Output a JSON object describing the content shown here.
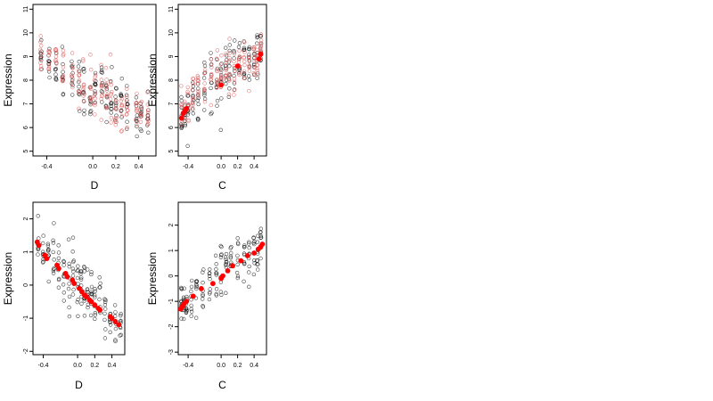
{
  "chart_data": [
    {
      "type": "scatter",
      "xlabel": "D",
      "ylabel": "Expression",
      "xlim": [
        -0.52,
        0.55
      ],
      "ylim": [
        4.8,
        11.2
      ],
      "xticks": [
        -0.4,
        0.0,
        0.2,
        0.4
      ],
      "yticks": [
        5,
        6,
        7,
        8,
        9,
        10,
        11
      ],
      "xtick_labels": [
        "-0.4",
        "0.0",
        "0.2",
        "0.4"
      ],
      "ytick_labels": [
        "5",
        "6",
        "7",
        "8",
        "9",
        "10",
        "11"
      ],
      "grid": false,
      "series": [
        {
          "color": "#000000",
          "marker": "open-circle",
          "x": [
            -0.45,
            -0.38,
            -0.32,
            -0.26,
            -0.18,
            -0.12,
            -0.08,
            -0.02,
            0.02,
            0.08,
            0.12,
            0.16,
            0.2,
            0.25,
            0.3,
            0.38,
            0.42,
            0.48
          ],
          "y": [
            9.0,
            8.9,
            8.6,
            8.3,
            8.2,
            7.9,
            7.6,
            7.3,
            7.4,
            7.7,
            7.3,
            7.1,
            7.0,
            6.9,
            6.8,
            6.7,
            6.6,
            6.4
          ],
          "spread": [
            0.9,
            0.9,
            0.9,
            1.0,
            1.1,
            1.1,
            1.1,
            1.0,
            1.1,
            1.2,
            1.1,
            1.0,
            1.0,
            0.9,
            0.9,
            0.8,
            0.8,
            0.8
          ]
        },
        {
          "color": "#e06060",
          "marker": "open-circle",
          "x": [
            -0.45,
            -0.38,
            -0.32,
            -0.26,
            -0.18,
            -0.12,
            -0.08,
            -0.02,
            0.02,
            0.08,
            0.12,
            0.16,
            0.2,
            0.25,
            0.3,
            0.38,
            0.42,
            0.48
          ],
          "y": [
            9.2,
            9.0,
            8.8,
            8.5,
            8.3,
            8.0,
            7.8,
            7.6,
            7.5,
            7.6,
            7.4,
            7.2,
            7.0,
            6.9,
            6.9,
            6.8,
            6.8,
            6.7
          ],
          "spread": [
            0.8,
            0.8,
            0.8,
            0.9,
            1.0,
            1.0,
            1.0,
            0.9,
            1.0,
            1.1,
            1.0,
            0.9,
            0.9,
            0.8,
            0.8,
            0.7,
            0.7,
            0.7
          ]
        }
      ]
    },
    {
      "type": "scatter",
      "xlabel": "C",
      "ylabel": "Expression",
      "xlim": [
        -0.52,
        0.55
      ],
      "ylim": [
        4.8,
        11.2
      ],
      "xticks": [
        -0.4,
        0.0,
        0.2,
        0.4
      ],
      "yticks": [
        5,
        6,
        7,
        8,
        9,
        10,
        11
      ],
      "xtick_labels": [
        "-0.4",
        "0.0",
        "0.2",
        "0.4"
      ],
      "ytick_labels": [
        "5",
        "6",
        "7",
        "8",
        "9",
        "10",
        "11"
      ],
      "grid": false,
      "series": [
        {
          "color": "#000000",
          "marker": "open-circle",
          "x": [
            -0.48,
            -0.44,
            -0.4,
            -0.34,
            -0.28,
            -0.2,
            -0.12,
            -0.05,
            0.0,
            0.06,
            0.1,
            0.16,
            0.22,
            0.28,
            0.34,
            0.4,
            0.44,
            0.48
          ],
          "y": [
            6.4,
            6.7,
            6.9,
            7.2,
            7.4,
            7.8,
            7.9,
            8.0,
            8.1,
            8.3,
            8.4,
            8.6,
            8.6,
            8.7,
            8.8,
            8.9,
            9.1,
            9.3
          ],
          "spread": [
            0.8,
            0.8,
            0.9,
            1.0,
            1.0,
            1.1,
            1.1,
            1.1,
            1.2,
            1.1,
            1.1,
            1.0,
            1.0,
            1.0,
            0.9,
            0.9,
            0.9,
            0.9
          ]
        },
        {
          "color": "#e06060",
          "marker": "open-circle",
          "x": [
            -0.48,
            -0.44,
            -0.4,
            -0.34,
            -0.28,
            -0.2,
            -0.12,
            -0.05,
            0.0,
            0.06,
            0.1,
            0.16,
            0.22,
            0.28,
            0.34,
            0.4,
            0.44,
            0.48
          ],
          "y": [
            6.5,
            6.7,
            7.0,
            7.3,
            7.6,
            7.9,
            8.0,
            8.1,
            8.2,
            8.3,
            8.4,
            8.5,
            8.6,
            8.7,
            8.8,
            8.9,
            9.0,
            9.1
          ],
          "spread": [
            0.7,
            0.7,
            0.8,
            0.9,
            0.9,
            1.0,
            1.0,
            1.0,
            1.0,
            1.0,
            1.0,
            0.9,
            0.9,
            0.9,
            0.8,
            0.8,
            0.8,
            0.8
          ]
        },
        {
          "color": "#ff0000",
          "marker": "filled-circle",
          "x": [
            -0.48,
            -0.46,
            -0.44,
            -0.42,
            0.0,
            0.2,
            0.46,
            0.48
          ],
          "y": [
            6.4,
            6.6,
            6.7,
            6.8,
            7.8,
            8.6,
            8.9,
            9.1
          ],
          "spread": [
            0,
            0,
            0,
            0,
            0,
            0,
            0,
            0
          ]
        }
      ]
    },
    {
      "type": "scatter",
      "xlabel": "D",
      "ylabel": "Expression",
      "xlim": [
        -0.52,
        0.55
      ],
      "ylim": [
        -2.1,
        2.5
      ],
      "xticks": [
        -0.4,
        0.0,
        0.2,
        0.4
      ],
      "yticks": [
        -2,
        -1,
        0,
        1,
        2
      ],
      "xtick_labels": [
        "-0.4",
        "0.0",
        "0.2",
        "0.4"
      ],
      "ytick_labels": [
        "-2",
        "-1",
        "0",
        "1",
        "2"
      ],
      "grid": false,
      "series": [
        {
          "color": "#000000",
          "marker": "open-circle",
          "x": [
            -0.46,
            -0.4,
            -0.34,
            -0.28,
            -0.22,
            -0.16,
            -0.1,
            -0.05,
            0.0,
            0.04,
            0.08,
            0.12,
            0.16,
            0.2,
            0.26,
            0.32,
            0.38,
            0.44,
            0.5
          ],
          "y": [
            1.3,
            1.1,
            0.9,
            0.7,
            0.5,
            0.3,
            0.2,
            0.1,
            -0.1,
            -0.2,
            -0.3,
            -0.4,
            -0.5,
            -0.6,
            -0.7,
            -0.8,
            -0.9,
            -1.1,
            -1.2
          ],
          "spread": [
            0.6,
            0.7,
            0.7,
            0.8,
            0.8,
            0.9,
            0.9,
            0.9,
            0.9,
            0.9,
            0.9,
            0.8,
            0.8,
            0.8,
            0.7,
            0.7,
            0.7,
            0.6,
            0.6
          ]
        },
        {
          "color": "#ff0000",
          "marker": "filled-circle",
          "x": [
            -0.47,
            -0.45,
            -0.38,
            -0.36,
            -0.24,
            -0.22,
            -0.14,
            -0.12,
            -0.06,
            -0.04,
            0.02,
            0.05,
            0.08,
            0.1,
            0.14,
            0.16,
            0.2,
            0.24,
            0.26,
            0.38,
            0.4,
            0.44,
            0.48
          ],
          "y": [
            1.3,
            1.2,
            0.9,
            0.8,
            0.6,
            0.5,
            0.35,
            0.25,
            0.15,
            0.05,
            -0.1,
            -0.2,
            -0.3,
            -0.35,
            -0.45,
            -0.5,
            -0.6,
            -0.7,
            -0.75,
            -0.95,
            -1.0,
            -1.1,
            -1.2
          ],
          "spread": [
            0,
            0,
            0,
            0,
            0,
            0,
            0,
            0,
            0,
            0,
            0,
            0,
            0,
            0,
            0,
            0,
            0,
            0,
            0,
            0,
            0,
            0,
            0
          ]
        }
      ]
    },
    {
      "type": "scatter",
      "xlabel": "C",
      "ylabel": "Expression",
      "xlim": [
        -0.52,
        0.55
      ],
      "ylim": [
        -3.1,
        2.9
      ],
      "xticks": [
        -0.4,
        0.0,
        0.2,
        0.4
      ],
      "yticks": [
        -3,
        -2,
        -1,
        0,
        1,
        2
      ],
      "xtick_labels": [
        "-0.4",
        "0.0",
        "0.2",
        "0.4"
      ],
      "ytick_labels": [
        "-3",
        "-2",
        "-1",
        "0",
        "1",
        "2"
      ],
      "grid": false,
      "series": [
        {
          "color": "#000000",
          "marker": "open-circle",
          "x": [
            -0.48,
            -0.45,
            -0.42,
            -0.36,
            -0.3,
            -0.22,
            -0.14,
            -0.06,
            0.0,
            0.06,
            0.12,
            0.2,
            0.28,
            0.34,
            0.4,
            0.44,
            0.48
          ],
          "y": [
            -1.2,
            -1.1,
            -1.0,
            -0.8,
            -0.6,
            -0.4,
            -0.2,
            0.0,
            0.1,
            0.3,
            0.4,
            0.6,
            0.7,
            0.8,
            0.9,
            1.1,
            1.3
          ],
          "spread": [
            0.8,
            0.8,
            0.8,
            0.9,
            0.9,
            1.0,
            1.0,
            1.1,
            1.1,
            1.1,
            1.0,
            1.0,
            0.9,
            0.9,
            0.8,
            0.8,
            0.8
          ]
        },
        {
          "color": "#ff0000",
          "marker": "filled-circle",
          "x": [
            -0.49,
            -0.47,
            -0.45,
            -0.42,
            -0.34,
            -0.24,
            -0.1,
            0.0,
            0.02,
            0.08,
            0.14,
            0.24,
            0.32,
            0.4,
            0.45,
            0.48,
            0.5
          ],
          "y": [
            -1.3,
            -1.2,
            -1.1,
            -1.0,
            -0.8,
            -0.5,
            -0.3,
            -0.1,
            0.0,
            0.2,
            0.4,
            0.6,
            0.8,
            0.9,
            1.05,
            1.15,
            1.25
          ],
          "spread": [
            0,
            0,
            0,
            0,
            0,
            0,
            0,
            0,
            0,
            0,
            0,
            0,
            0,
            0,
            0,
            0,
            0
          ]
        }
      ]
    }
  ]
}
